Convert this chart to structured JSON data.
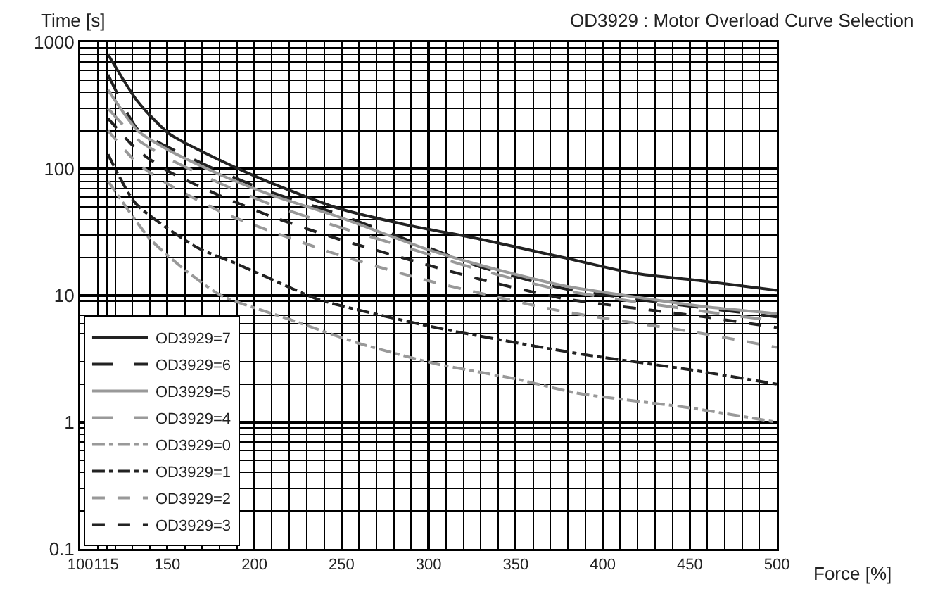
{
  "chart_data": {
    "type": "line",
    "title": "OD3929 : Motor Overload Curve Selection",
    "xlabel": "Force [%]",
    "ylabel": "Time [s]",
    "xlim": [
      100,
      500
    ],
    "xticks": [
      100,
      115,
      150,
      200,
      250,
      300,
      350,
      400,
      450,
      500
    ],
    "ylim": [
      0.1,
      1000
    ],
    "yticks": [
      0.1,
      1,
      10,
      100,
      1000
    ],
    "log": true,
    "grid": true,
    "legend": "bottom left",
    "marker": "none",
    "series": [
      {
        "name": "OD3929=7",
        "color": "#222222",
        "line_style": "solid",
        "x": [
          116,
          133,
          151,
          182,
          210,
          248,
          288,
          329,
          377,
          418,
          458,
          500
        ],
        "values": [
          800,
          340,
          190,
          114,
          77,
          49,
          36,
          28,
          20,
          15,
          13,
          11
        ]
      },
      {
        "name": "OD3929=6",
        "color": "#222222",
        "line_style": "longdash",
        "x": [
          116,
          133,
          151,
          182,
          210,
          248,
          296,
          329,
          377,
          458,
          500
        ],
        "values": [
          555,
          205,
          147,
          93,
          65,
          44,
          25,
          17,
          11.4,
          8,
          6.8
        ]
      },
      {
        "name": "OD3929=5",
        "color": "#999999",
        "line_style": "solid",
        "x": [
          116,
          133,
          151,
          182,
          210,
          248,
          296,
          329,
          377,
          458,
          500
        ],
        "values": [
          420,
          200,
          140,
          88,
          62,
          42,
          24,
          17.5,
          12,
          8.2,
          7.2
        ]
      },
      {
        "name": "OD3929=4",
        "color": "#999999",
        "line_style": "longdash",
        "x": [
          116,
          133,
          151,
          182,
          210,
          248,
          296,
          329,
          377,
          458,
          500
        ],
        "values": [
          300,
          170,
          120,
          75,
          52,
          35,
          22,
          16,
          11,
          7.5,
          6.3
        ]
      },
      {
        "name": "OD3929=0",
        "color": "#999999",
        "line_style": "dashdot",
        "x": [
          116,
          140,
          160,
          181,
          220,
          260,
          304,
          350,
          385,
          450,
          500
        ],
        "values": [
          80,
          28,
          16,
          10,
          6.5,
          4.2,
          2.9,
          2.2,
          1.7,
          1.3,
          1.0
        ]
      },
      {
        "name": "OD3929=1",
        "color": "#222222",
        "line_style": "dashdot",
        "x": [
          116,
          132,
          167,
          189,
          207,
          237,
          304,
          385,
          450,
          500
        ],
        "values": [
          130,
          53,
          24,
          18,
          14,
          9.3,
          5.6,
          3.5,
          2.6,
          2.0
        ]
      },
      {
        "name": "OD3929=2",
        "color": "#999999",
        "line_style": "dash",
        "x": [
          116,
          133,
          151,
          182,
          210,
          248,
          296,
          329,
          377,
          458,
          500
        ],
        "values": [
          200,
          110,
          75,
          45,
          32,
          21,
          13.5,
          10.5,
          7.5,
          5,
          3.9
        ]
      },
      {
        "name": "OD3929=3",
        "color": "#222222",
        "line_style": "dash",
        "x": [
          116,
          133,
          151,
          182,
          210,
          248,
          296,
          329,
          377,
          458,
          500
        ],
        "values": [
          250,
          140,
          95,
          60,
          42,
          28,
          18,
          13.5,
          9.5,
          6.8,
          5.6
        ]
      }
    ]
  }
}
